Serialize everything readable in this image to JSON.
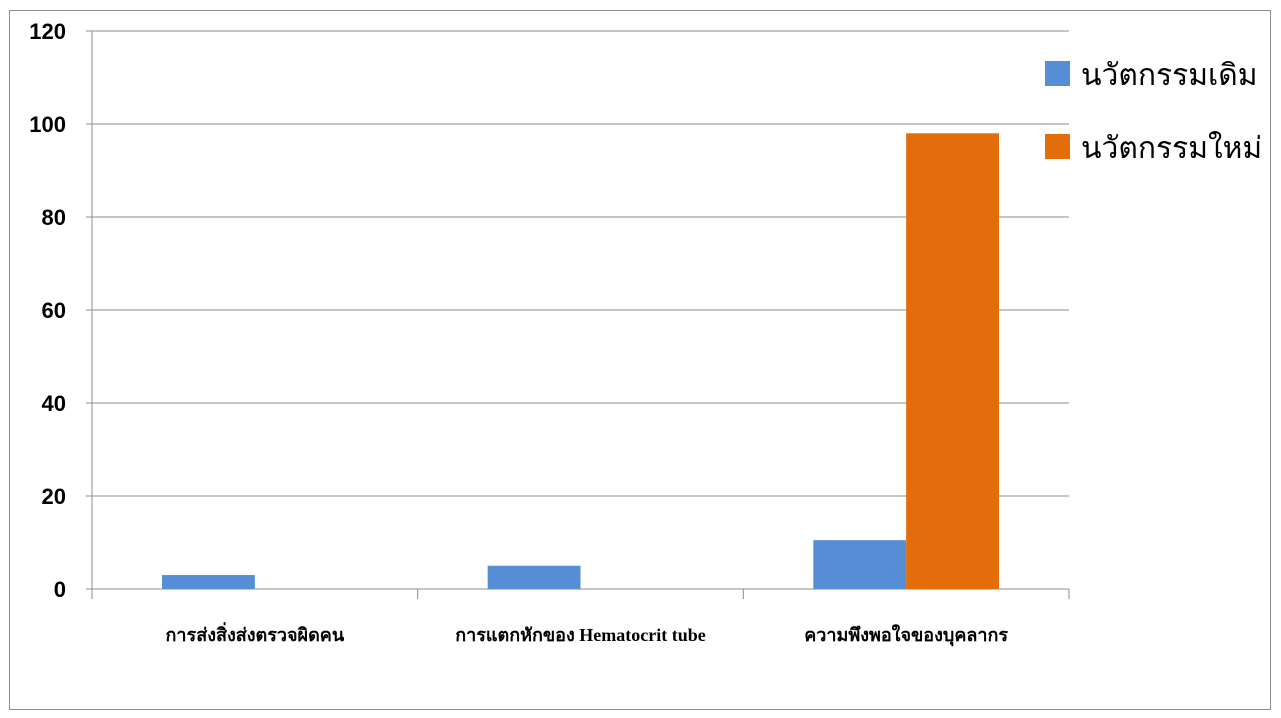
{
  "chart_data": {
    "type": "bar",
    "title": "",
    "xlabel": "",
    "ylabel": "",
    "ylim": [
      0,
      120
    ],
    "yticks": [
      0,
      20,
      40,
      60,
      80,
      100,
      120
    ],
    "grid": true,
    "legend_position": "right",
    "categories": [
      "การส่งสิ่งส่งตรวจผิดคน",
      "การแตกหักของ Hematocrit tube",
      "ความพึงพอใจของบุคลากร"
    ],
    "series": [
      {
        "name": "นวัตกรรมเดิม",
        "color": "#558ed5",
        "values": [
          3,
          5,
          10.5
        ]
      },
      {
        "name": "นวัตกรรมใหม่",
        "color": "#e46c0a",
        "values": [
          0,
          0,
          98
        ]
      }
    ]
  }
}
